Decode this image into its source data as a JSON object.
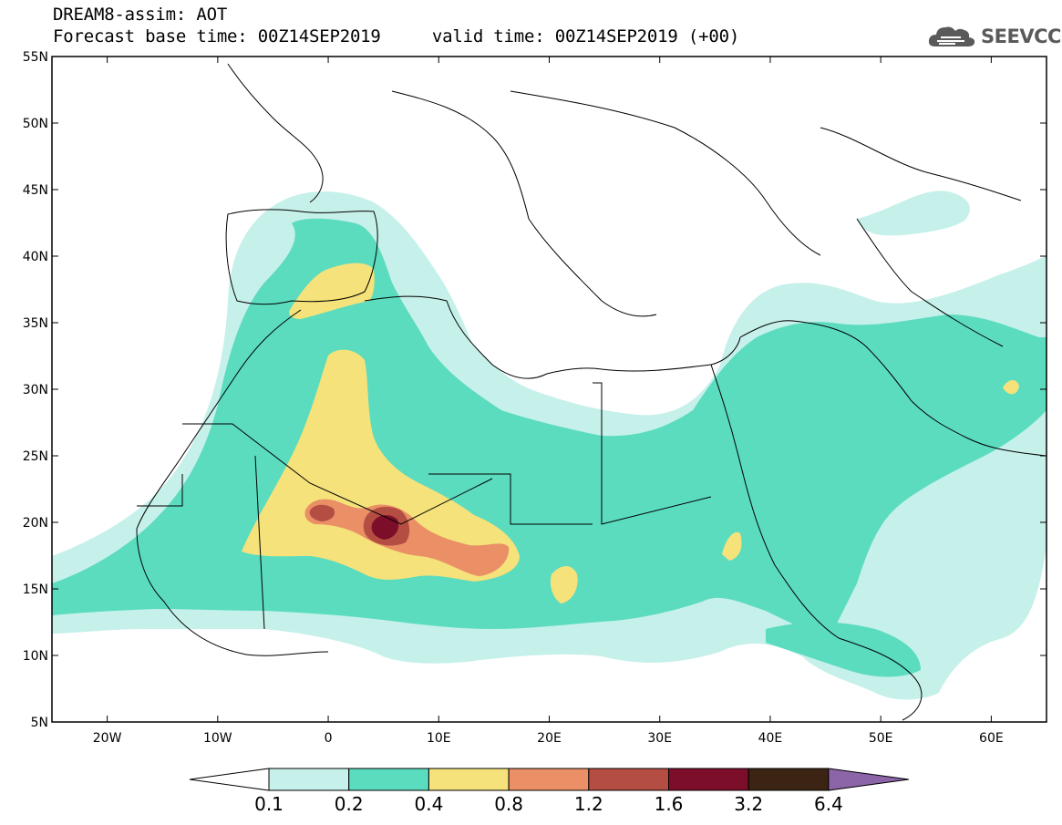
{
  "header": {
    "line1": "DREAM8-assim: AOT",
    "base_time_label": "Forecast base time:",
    "base_time": "00Z14SEP2019",
    "valid_time_label": "valid time:",
    "valid_time": "00Z14SEP2019 (+00)"
  },
  "logo": {
    "text": "SEEVCCC",
    "icon": "cloud-logo-icon"
  },
  "map": {
    "lon_range": [
      -25,
      65
    ],
    "lat_range": [
      5,
      55
    ],
    "lat_labels": [
      "55N",
      "50N",
      "45N",
      "40N",
      "35N",
      "30N",
      "25N",
      "20N",
      "15N",
      "10N",
      "5N"
    ],
    "lat_values": [
      55,
      50,
      45,
      40,
      35,
      30,
      25,
      20,
      15,
      10,
      5
    ],
    "lon_labels": [
      "20W",
      "10W",
      "0",
      "10E",
      "20E",
      "30E",
      "40E",
      "50E",
      "60E"
    ],
    "lon_values": [
      -20,
      -10,
      0,
      10,
      20,
      30,
      40,
      50,
      60
    ]
  },
  "legend": {
    "ticks": [
      "0.1",
      "0.2",
      "0.4",
      "0.8",
      "1.2",
      "1.6",
      "3.2",
      "6.4"
    ],
    "colors": [
      "#ffffff",
      "#c6f0ea",
      "#5bdcbf",
      "#f5e27a",
      "#ea8f66",
      "#b54e42",
      "#7d0e2a",
      "#3c2414",
      "#8c64a8"
    ]
  }
}
